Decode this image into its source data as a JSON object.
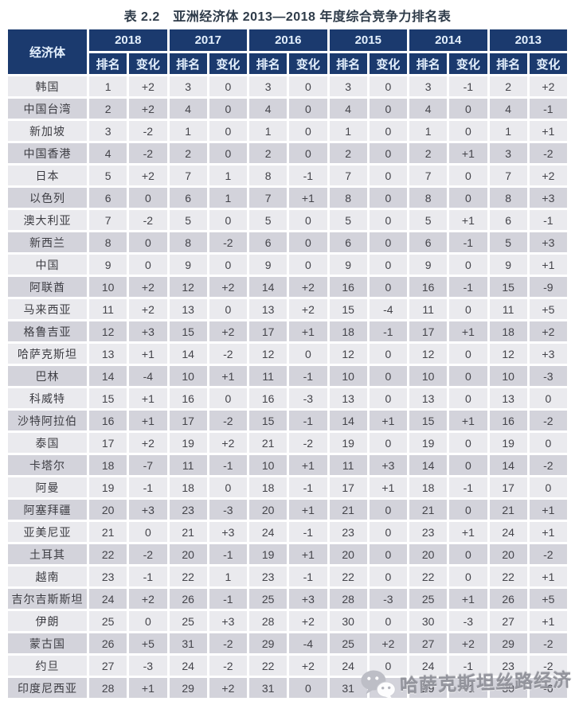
{
  "page": {
    "title": "表 2.2　亚洲经济体 2013—2018 年度综合竞争力排名表"
  },
  "table": {
    "economy_header": "经济体",
    "years": [
      "2018",
      "2017",
      "2016",
      "2015",
      "2014",
      "2013"
    ],
    "rank_label": "排名",
    "change_label": "变化",
    "rows": [
      {
        "name": "韩国",
        "values": [
          "1",
          "+2",
          "3",
          "0",
          "3",
          "0",
          "3",
          "0",
          "3",
          "-1",
          "2",
          "+2"
        ]
      },
      {
        "name": "中国台湾",
        "values": [
          "2",
          "+2",
          "4",
          "0",
          "4",
          "0",
          "4",
          "0",
          "4",
          "0",
          "4",
          "-1"
        ]
      },
      {
        "name": "新加坡",
        "values": [
          "3",
          "-2",
          "1",
          "0",
          "1",
          "0",
          "1",
          "0",
          "1",
          "0",
          "1",
          "+1"
        ]
      },
      {
        "name": "中国香港",
        "values": [
          "4",
          "-2",
          "2",
          "0",
          "2",
          "0",
          "2",
          "0",
          "2",
          "+1",
          "3",
          "-2"
        ]
      },
      {
        "name": "日本",
        "values": [
          "5",
          "+2",
          "7",
          "1",
          "8",
          "-1",
          "7",
          "0",
          "7",
          "0",
          "7",
          "+2"
        ]
      },
      {
        "name": "以色列",
        "values": [
          "6",
          "0",
          "6",
          "1",
          "7",
          "+1",
          "8",
          "0",
          "8",
          "0",
          "8",
          "+3"
        ]
      },
      {
        "name": "澳大利亚",
        "values": [
          "7",
          "-2",
          "5",
          "0",
          "5",
          "0",
          "5",
          "0",
          "5",
          "+1",
          "6",
          "-1"
        ]
      },
      {
        "name": "新西兰",
        "values": [
          "8",
          "0",
          "8",
          "-2",
          "6",
          "0",
          "6",
          "0",
          "6",
          "-1",
          "5",
          "+3"
        ]
      },
      {
        "name": "中国",
        "values": [
          "9",
          "0",
          "9",
          "0",
          "9",
          "0",
          "9",
          "0",
          "9",
          "0",
          "9",
          "+1"
        ]
      },
      {
        "name": "阿联酋",
        "values": [
          "10",
          "+2",
          "12",
          "+2",
          "14",
          "+2",
          "16",
          "0",
          "16",
          "-1",
          "15",
          "-9"
        ]
      },
      {
        "name": "马来西亚",
        "values": [
          "11",
          "+2",
          "13",
          "0",
          "13",
          "+2",
          "15",
          "-4",
          "11",
          "0",
          "11",
          "+5"
        ]
      },
      {
        "name": "格鲁吉亚",
        "values": [
          "12",
          "+3",
          "15",
          "+2",
          "17",
          "+1",
          "18",
          "-1",
          "17",
          "+1",
          "18",
          "+2"
        ]
      },
      {
        "name": "哈萨克斯坦",
        "values": [
          "13",
          "+1",
          "14",
          "-2",
          "12",
          "0",
          "12",
          "0",
          "12",
          "0",
          "12",
          "+3"
        ]
      },
      {
        "name": "巴林",
        "values": [
          "14",
          "-4",
          "10",
          "+1",
          "11",
          "-1",
          "10",
          "0",
          "10",
          "0",
          "10",
          "-3"
        ]
      },
      {
        "name": "科威特",
        "values": [
          "15",
          "+1",
          "16",
          "0",
          "16",
          "-3",
          "13",
          "0",
          "13",
          "0",
          "13",
          "0"
        ]
      },
      {
        "name": "沙特阿拉伯",
        "values": [
          "16",
          "+1",
          "17",
          "-2",
          "15",
          "-1",
          "14",
          "+1",
          "15",
          "+1",
          "16",
          "-2"
        ]
      },
      {
        "name": "泰国",
        "values": [
          "17",
          "+2",
          "19",
          "+2",
          "21",
          "-2",
          "19",
          "0",
          "19",
          "0",
          "19",
          "0"
        ]
      },
      {
        "name": "卡塔尔",
        "values": [
          "18",
          "-7",
          "11",
          "-1",
          "10",
          "+1",
          "11",
          "+3",
          "14",
          "0",
          "14",
          "-2"
        ]
      },
      {
        "name": "阿曼",
        "values": [
          "19",
          "-1",
          "18",
          "0",
          "18",
          "-1",
          "17",
          "+1",
          "18",
          "-1",
          "17",
          "0"
        ]
      },
      {
        "name": "阿塞拜疆",
        "values": [
          "20",
          "+3",
          "23",
          "-3",
          "20",
          "+1",
          "21",
          "0",
          "21",
          "0",
          "21",
          "+1"
        ]
      },
      {
        "name": "亚美尼亚",
        "values": [
          "21",
          "0",
          "21",
          "+3",
          "24",
          "-1",
          "23",
          "0",
          "23",
          "+1",
          "24",
          "+1"
        ]
      },
      {
        "name": "土耳其",
        "values": [
          "22",
          "-2",
          "20",
          "-1",
          "19",
          "+1",
          "20",
          "0",
          "20",
          "0",
          "20",
          "-2"
        ]
      },
      {
        "name": "越南",
        "values": [
          "23",
          "-1",
          "22",
          "1",
          "23",
          "-1",
          "22",
          "0",
          "22",
          "0",
          "22",
          "+1"
        ]
      },
      {
        "name": "吉尔吉斯斯坦",
        "values": [
          "24",
          "+2",
          "26",
          "-1",
          "25",
          "+3",
          "28",
          "-3",
          "25",
          "+1",
          "26",
          "+5"
        ]
      },
      {
        "name": "伊朗",
        "values": [
          "25",
          "0",
          "25",
          "+3",
          "28",
          "+2",
          "30",
          "0",
          "30",
          "-3",
          "27",
          "+1"
        ]
      },
      {
        "name": "蒙古国",
        "values": [
          "26",
          "+5",
          "31",
          "-2",
          "29",
          "-4",
          "25",
          "+2",
          "27",
          "+2",
          "29",
          "-2"
        ]
      },
      {
        "name": "约旦",
        "values": [
          "27",
          "-3",
          "24",
          "-2",
          "22",
          "+2",
          "24",
          "0",
          "24",
          "-1",
          "23",
          "-2"
        ]
      },
      {
        "name": "印度尼西亚",
        "values": [
          "28",
          "+1",
          "29",
          "+2",
          "31",
          "0",
          "31",
          "-2",
          "29",
          "+1",
          "30",
          "-6"
        ]
      }
    ]
  },
  "watermark": {
    "text": "哈萨克斯坦丝路经济",
    "icon": "wechat-icon"
  },
  "colors": {
    "header_bg": "#1b3a6e",
    "header_text": "#e4f0fd",
    "row_light": "#eaeaee",
    "row_dark": "#d3d3db",
    "cell_text": "#44444a",
    "watermark_text": "#93949c"
  }
}
